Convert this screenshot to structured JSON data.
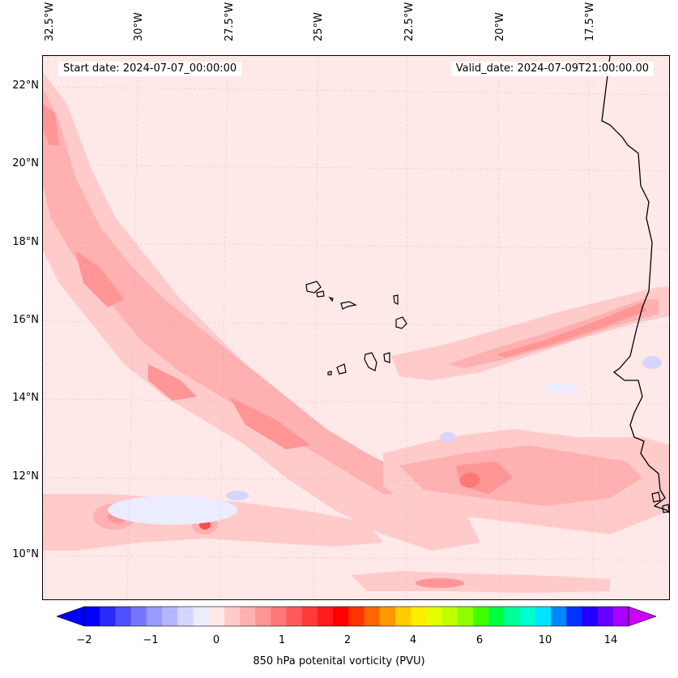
{
  "header": {
    "start_date": "Start date: 2024-07-07_00:00:00",
    "valid_date": "Valid_date: 2024-07-09T21:00:00.00"
  },
  "axes": {
    "longitude_labels": [
      "32.5°W",
      "30°W",
      "27.5°W",
      "25°W",
      "22.5°W",
      "20°W",
      "17.5°W"
    ],
    "latitude_labels": [
      "22°N",
      "20°N",
      "18°N",
      "16°N",
      "14°N",
      "12°N",
      "10°N"
    ]
  },
  "colorbar": {
    "label": "850 hPa potenital vorticity (PVU)",
    "tick_labels": [
      "−2",
      "−1",
      "0",
      "1",
      "2",
      "4",
      "6",
      "10",
      "14"
    ],
    "colors": [
      "#0000ff",
      "#2a2aff",
      "#5050ff",
      "#7575ff",
      "#9a9aff",
      "#b5b5ff",
      "#d5d5ff",
      "#ececff",
      "#ffe8e8",
      "#ffcaca",
      "#ffb0b0",
      "#ff9595",
      "#ff7777",
      "#ff5a5a",
      "#ff3a3a",
      "#ff1c1c",
      "#ff0000",
      "#ff3300",
      "#ff6600",
      "#ff9900",
      "#ffcc00",
      "#ffee00",
      "#e5ff00",
      "#c0ff00",
      "#8fff00",
      "#40ff00",
      "#00ff40",
      "#00ff99",
      "#00ffcc",
      "#00e5ff",
      "#0088ff",
      "#0033ff",
      "#2200ff",
      "#6600ff",
      "#aa00ff"
    ],
    "under_color": "#0000ff",
    "over_color": "#cc00ff"
  },
  "map_colors": {
    "background": "#ffe8e8",
    "level1": "#ffcaca",
    "level2": "#ffb0b0",
    "level3": "#ff9595",
    "level4": "#ff7777",
    "level5": "#ff4a4a",
    "negative": "#ececff",
    "negative2": "#d5d5ff",
    "coast": "#000000",
    "grid": "#bbbbbb"
  }
}
